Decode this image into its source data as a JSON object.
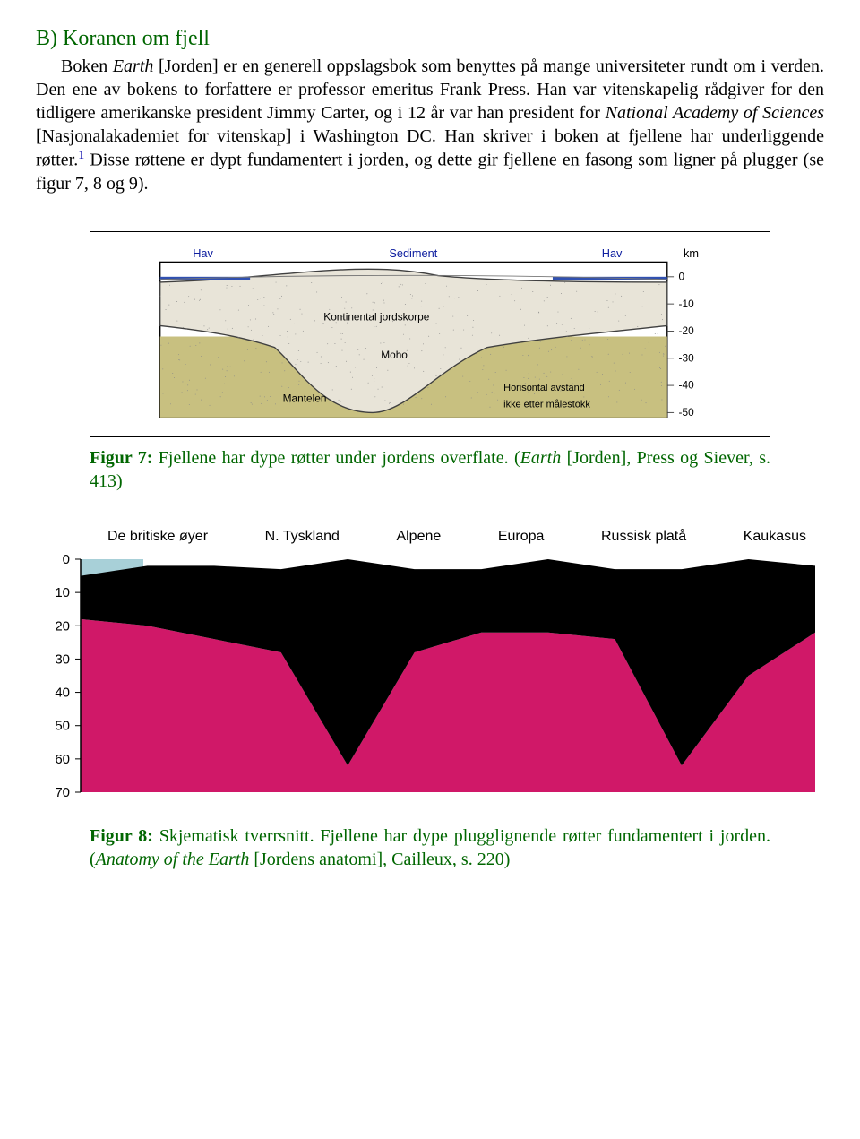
{
  "heading": "B) Koranen om fjell",
  "para_parts": {
    "p1": "Boken ",
    "p2_italic": "Earth",
    "p3": " [Jorden] er en generell oppslagsbok som benyttes på mange universiteter rundt om i verden. Den ene av bokens to forfattere er professor emeritus Frank Press. Han var vitenskapelig rådgiver for den tidligere amerikanske president Jimmy Carter, og i 12 år var han president for ",
    "p4_italic": "National Academy of Sciences",
    "p5": " [Nasjonalakademiet for vitenskap] i Washington DC. Han skriver i boken at fjellene har underliggende røtter.",
    "p6_foot": "1",
    "p7": " Disse røttene er dypt fundamentert i jorden, og dette gir fjellene en fasong som ligner på plugger (se figur 7, 8 og 9)."
  },
  "figure7": {
    "labels": {
      "hav_left": "Hav",
      "sediment": "Sediment",
      "hav_right": "Hav",
      "km": "km",
      "crust": "Kontinental jordskorpe",
      "moho": "Moho",
      "mantle": "Mantelen",
      "note1": "Horisontal avstand",
      "note2": "ikke etter målestokk"
    },
    "depths": [
      "0",
      "-10",
      "-20",
      "-30",
      "-40",
      "-50"
    ],
    "colors": {
      "frame": "#000000",
      "sky_bg": "#ffffff",
      "crust": "#e8e4d8",
      "moho_line": "#404040",
      "mantle": "#c8c080",
      "sea": "#3050b0",
      "label_blue": "#1020a0",
      "tick": "#404040"
    }
  },
  "caption7": {
    "bold": "Figur 7:",
    "t1": " Fjellene har dype røtter under jordens overflate. (",
    "italic": "Earth",
    "t2": "  [Jorden], Press og  Siever, s. 413)"
  },
  "figure8": {
    "region_labels": [
      "De britiske øyer",
      "N. Tyskland",
      "Alpene",
      "Europa",
      "Russisk platå",
      "Kaukasus"
    ],
    "y_ticks": [
      "0",
      "10",
      "20",
      "30",
      "40",
      "50",
      "60",
      "70"
    ],
    "colors": {
      "sea": "#a8d0d8",
      "crust": "#000000",
      "mantle": "#d01868",
      "bg": "#ffffff",
      "text": "#000000"
    },
    "profile": {
      "top_y": [
        5,
        2,
        2,
        3,
        0,
        3,
        3,
        0,
        3,
        3,
        0,
        2
      ],
      "bottom_y": [
        18,
        20,
        24,
        28,
        62,
        28,
        22,
        22,
        24,
        62,
        35,
        22
      ]
    }
  },
  "caption8": {
    "bold": "Figur 8:",
    "t1": " Skjematisk tverrsnitt. Fjellene har dype plugglignende røtter fundamentert i jorden. (",
    "italic": "Anatomy of the Earth",
    "t2": " [Jordens anatomi], Cailleux, s. 220)"
  }
}
